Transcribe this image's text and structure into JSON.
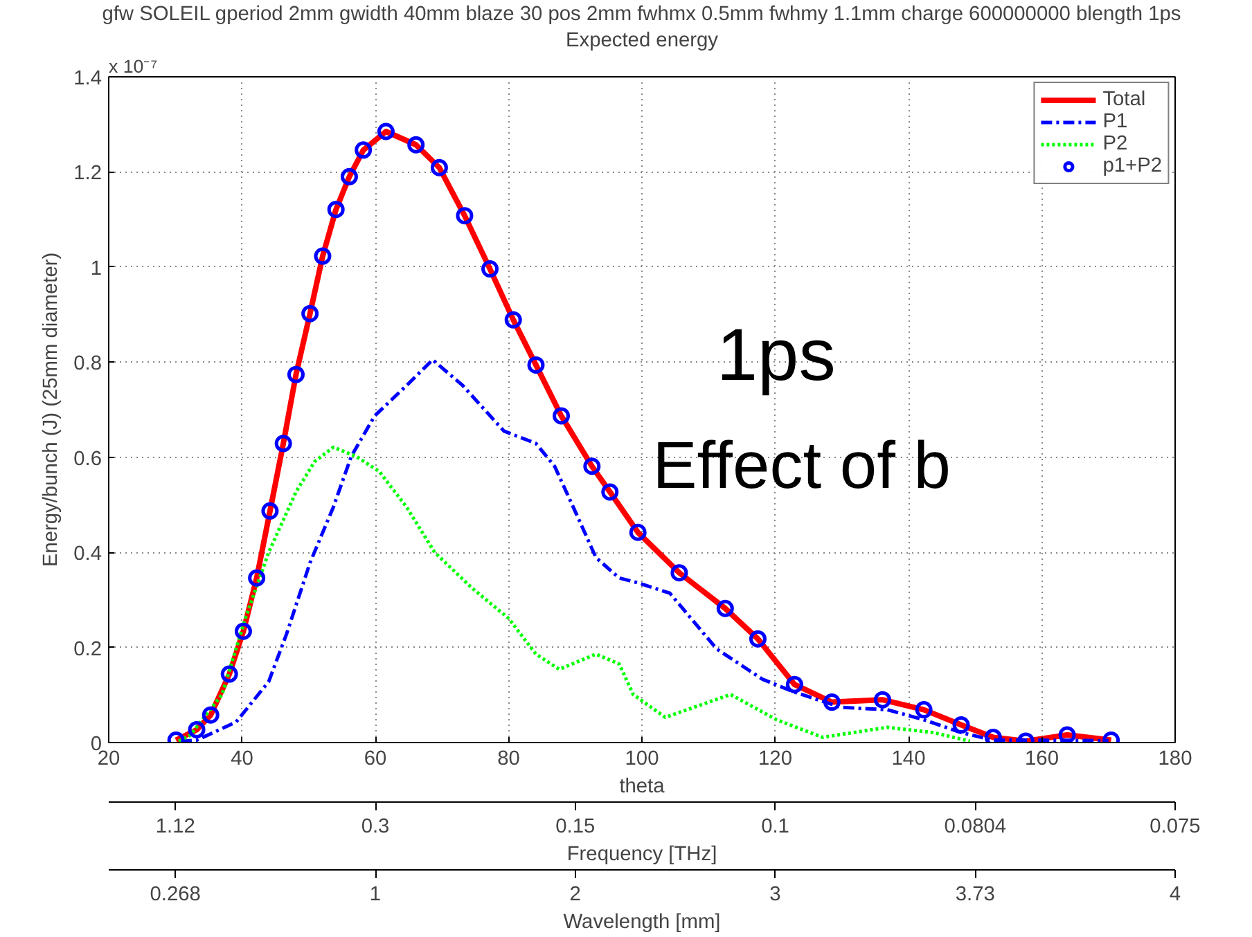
{
  "chart_data": {
    "type": "line",
    "title": "gfw SOLEIL gperiod 2mm gwidth 40mm blaze 30 pos 2mm fwhmx 0.5mm fwhmy 1.1mm charge 600000000 blength 1ps",
    "subtitle": "Expected energy",
    "xlabel": "theta",
    "ylabel": "Energy/bunch (J) (25mm diameter)",
    "annotations": [
      "x 10⁻⁷",
      "1ps",
      "Effect of b",
      "1.12",
      "0.3",
      "0.15",
      "0.1",
      "0.0804",
      "0.075",
      "Frequency [THz]",
      "0.268",
      "1",
      "2",
      "3",
      "3.73",
      "4",
      "Wavelength [mm]"
    ],
    "xlim": [
      20,
      180
    ],
    "xticks": [
      20,
      40,
      60,
      80,
      100,
      120,
      140,
      160,
      180
    ],
    "ylim": [
      0,
      1.4
    ],
    "yticks": [
      0,
      0.2,
      0.4,
      0.6,
      0.8,
      1,
      1.2,
      1.4
    ],
    "grid": true,
    "legend": "top right",
    "series": [
      {
        "name": "Total",
        "color": "#ff0000",
        "line_style": "solid",
        "x": [
          30.1,
          33.2,
          35.3,
          38.1,
          40.2,
          42.2,
          44.2,
          46.2,
          48.1,
          50.2,
          52.1,
          54.1,
          56.1,
          58.2,
          61.6,
          66.1,
          69.6,
          73.4,
          77.2,
          80.7,
          84.1,
          87.9,
          92.5,
          95.2,
          99.4,
          105.6,
          112.5,
          117.4,
          122.9,
          128.5,
          136.1,
          142.3,
          147.9,
          152.7,
          157.6,
          163.8,
          170.4
        ],
        "values": [
          0.005,
          0.027,
          0.058,
          0.144,
          0.234,
          0.346,
          0.487,
          0.629,
          0.774,
          0.902,
          1.023,
          1.121,
          1.19,
          1.246,
          1.285,
          1.257,
          1.209,
          1.108,
          0.996,
          0.889,
          0.794,
          0.687,
          0.581,
          0.527,
          0.442,
          0.357,
          0.282,
          0.218,
          0.122,
          0.085,
          0.09,
          0.069,
          0.037,
          0.011,
          0.003,
          0.016,
          0.005
        ]
      },
      {
        "name": "P1",
        "color": "#0000ff",
        "line_style": "dashdot",
        "x": [
          30.8,
          33.2,
          39.1,
          44.0,
          46.7,
          50.2,
          53.7,
          56.4,
          59.9,
          64.7,
          68.6,
          73.1,
          79.3,
          84.1,
          86.9,
          89.7,
          93.1,
          96.6,
          99.4,
          104.2,
          111.2,
          118.1,
          122.9,
          129.9,
          136.8,
          142.3,
          147.9,
          152.7,
          160,
          170
        ],
        "values": [
          0.003,
          0.005,
          0.043,
          0.128,
          0.229,
          0.378,
          0.495,
          0.602,
          0.687,
          0.751,
          0.805,
          0.751,
          0.655,
          0.629,
          0.581,
          0.495,
          0.389,
          0.346,
          0.336,
          0.314,
          0.197,
          0.133,
          0.106,
          0.074,
          0.069,
          0.048,
          0.021,
          0.005,
          0.005,
          0.004
        ]
      },
      {
        "name": "P2",
        "color": "#00ff00",
        "line_style": "dotted",
        "x": [
          30.5,
          32.2,
          37.0,
          40.5,
          44.0,
          48.1,
          50.9,
          53.7,
          57.1,
          60.6,
          64.7,
          68.9,
          74.5,
          80.0,
          84.1,
          87.6,
          93.1,
          96.6,
          98.7,
          103.5,
          113.3,
          120.2,
          127.1,
          136.8,
          143.7,
          149.2
        ],
        "values": [
          0.003,
          0.015,
          0.101,
          0.261,
          0.4,
          0.527,
          0.591,
          0.621,
          0.602,
          0.57,
          0.495,
          0.4,
          0.325,
          0.261,
          0.186,
          0.154,
          0.186,
          0.165,
          0.101,
          0.053,
          0.101,
          0.048,
          0.011,
          0.032,
          0.021,
          0.003
        ]
      },
      {
        "name": "p1+P2",
        "type": "scatter",
        "color": "#0000ff",
        "marker": "circle",
        "x": [
          30.1,
          33.2,
          35.3,
          38.1,
          40.2,
          42.2,
          44.2,
          46.2,
          48.1,
          50.2,
          52.1,
          54.1,
          56.1,
          58.2,
          61.6,
          66.1,
          69.6,
          73.4,
          77.2,
          80.7,
          84.1,
          87.9,
          92.5,
          95.2,
          99.4,
          105.6,
          112.5,
          117.4,
          122.9,
          128.5,
          136.1,
          142.3,
          147.9,
          152.7,
          157.6,
          163.8,
          170.4
        ],
        "values": [
          0.005,
          0.027,
          0.058,
          0.144,
          0.234,
          0.346,
          0.487,
          0.629,
          0.774,
          0.902,
          1.023,
          1.121,
          1.19,
          1.246,
          1.285,
          1.257,
          1.209,
          1.108,
          0.996,
          0.889,
          0.794,
          0.687,
          0.581,
          0.527,
          0.442,
          0.357,
          0.282,
          0.218,
          0.122,
          0.085,
          0.09,
          0.069,
          0.037,
          0.011,
          0.003,
          0.016,
          0.005
        ]
      }
    ]
  }
}
